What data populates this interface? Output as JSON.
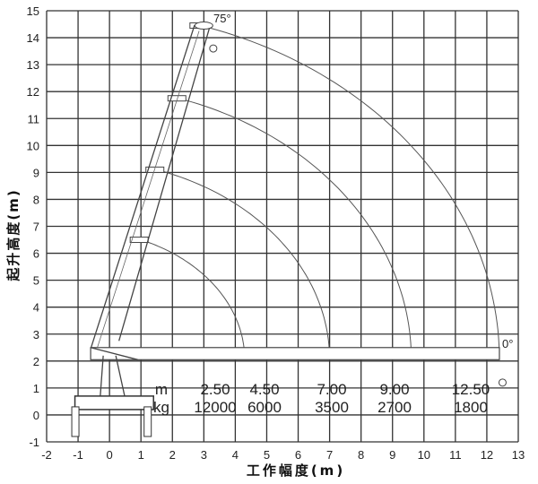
{
  "chart_data": {
    "type": "crane-working-range",
    "xlabel": "工作幅度(m)",
    "ylabel": "起升高度(m)",
    "xlim": [
      -2,
      13
    ],
    "ylim": [
      -1,
      15
    ],
    "x_ticks": [
      "-2",
      "-1",
      "0",
      "1",
      "2",
      "3",
      "4",
      "5",
      "6",
      "7",
      "8",
      "9",
      "10",
      "11",
      "12",
      "13"
    ],
    "y_ticks": [
      "-1",
      "0",
      "1",
      "2",
      "3",
      "4",
      "5",
      "6",
      "7",
      "8",
      "9",
      "10",
      "11",
      "12",
      "13",
      "14",
      "15"
    ],
    "grid": true,
    "angle_labels": {
      "max": "75°",
      "min": "0°"
    },
    "load_table": {
      "radius_unit": "m",
      "load_unit": "kg",
      "radius": [
        "2.50",
        "4.50",
        "7.00",
        "9.00",
        "12.50"
      ],
      "load": [
        "12000",
        "6000",
        "3500",
        "2700",
        "1800"
      ]
    },
    "boom_pivot": [
      -0.6,
      2.45
    ],
    "boom_sections": [
      {
        "tip": [
          1.0,
          6.5
        ],
        "horizontal_reach": 4.3
      },
      {
        "tip": [
          1.5,
          9.1
        ],
        "horizontal_reach": 7.0
      },
      {
        "tip": [
          2.2,
          11.75
        ],
        "horizontal_reach": 9.6
      },
      {
        "tip": [
          2.9,
          14.45
        ],
        "horizontal_reach": 12.4
      }
    ]
  }
}
